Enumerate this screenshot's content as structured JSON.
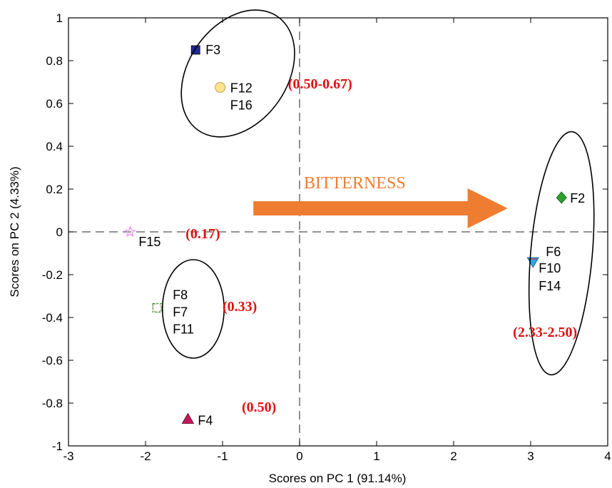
{
  "chart_data": {
    "type": "scatter",
    "xlabel": "Scores on PC 1 (91.14%)",
    "ylabel": "Scores on PC 2 (4.33%)",
    "xlim": [
      -3,
      4
    ],
    "ylim": [
      -1,
      1
    ],
    "xticks": [
      -3,
      -2,
      -1,
      0,
      1,
      2,
      3,
      4
    ],
    "yticks": [
      -1,
      -0.8,
      -0.6,
      -0.4,
      -0.2,
      0,
      0.2,
      0.4,
      0.6,
      0.8,
      1
    ],
    "xtick_labels": [
      "-3",
      "-2",
      "-1",
      "0",
      "1",
      "2",
      "3",
      "4"
    ],
    "ytick_labels": [
      "-1",
      "-0.8",
      "-0.6",
      "-0.4",
      "-0.2",
      "0",
      "0.2",
      "0.4",
      "0.6",
      "0.8",
      "1"
    ],
    "grid": false,
    "zero_lines": "dashed",
    "points": [
      {
        "label": "F3",
        "x": -1.35,
        "y": 0.85,
        "marker": "square",
        "color": "#1f2a9b"
      },
      {
        "label": "F12",
        "x": -1.03,
        "y": 0.675,
        "marker": "circle",
        "color": "#fde38a"
      },
      {
        "label": "F16",
        "x": -1.03,
        "y": 0.675,
        "marker": "none",
        "color": "#000000"
      },
      {
        "label": "F2",
        "x": 3.4,
        "y": 0.16,
        "marker": "diamond",
        "color": "#2ca02c"
      },
      {
        "label": "F6",
        "x": 3.03,
        "y": -0.14,
        "marker": "triangle-down",
        "color": "#2aa7e8"
      },
      {
        "label": "F10",
        "x": 3.03,
        "y": -0.14,
        "marker": "none",
        "color": "#000000"
      },
      {
        "label": "F14",
        "x": 3.03,
        "y": -0.14,
        "marker": "none",
        "color": "#000000"
      },
      {
        "label": "F15",
        "x": -2.2,
        "y": 0.0,
        "marker": "star",
        "color": "#ee88ee"
      },
      {
        "label": "F8",
        "x": -1.85,
        "y": -0.355,
        "marker": "circle-open",
        "color": "#cc6666"
      },
      {
        "label": "F7",
        "x": -1.85,
        "y": -0.355,
        "marker": "square-open",
        "color": "#2ca02c"
      },
      {
        "label": "F11",
        "x": -1.85,
        "y": -0.355,
        "marker": "none",
        "color": "#000000"
      },
      {
        "label": "F4",
        "x": -1.45,
        "y": -0.875,
        "marker": "triangle-up",
        "color": "#c2185b"
      }
    ],
    "annotations": [
      {
        "text": "(0.50-0.67)",
        "x": -0.15,
        "y": 0.67
      },
      {
        "text": "(0.17)",
        "x": -1.48,
        "y": -0.03
      },
      {
        "text": "(0.33)",
        "x": -1.0,
        "y": -0.37
      },
      {
        "text": "(0.50)",
        "x": -0.75,
        "y": -0.84
      },
      {
        "text": "(2.33-2.50)",
        "x": 2.77,
        "y": -0.49
      }
    ],
    "arrow": {
      "text": "BITTERNESS",
      "color": "#ee7d31",
      "x_start": -0.6,
      "x_end": 2.7,
      "y": 0.11
    },
    "clusters": [
      {
        "cx": -0.8,
        "cy": 0.74,
        "rx": 0.9,
        "ry": 0.23,
        "angle_deg": -55
      },
      {
        "cx": -1.38,
        "cy": -0.36,
        "rx": 0.4,
        "ry": 0.23,
        "angle_deg": 0
      },
      {
        "cx": 3.4,
        "cy": -0.1,
        "rx": 0.4,
        "ry": 0.57,
        "angle_deg": 5
      }
    ]
  }
}
